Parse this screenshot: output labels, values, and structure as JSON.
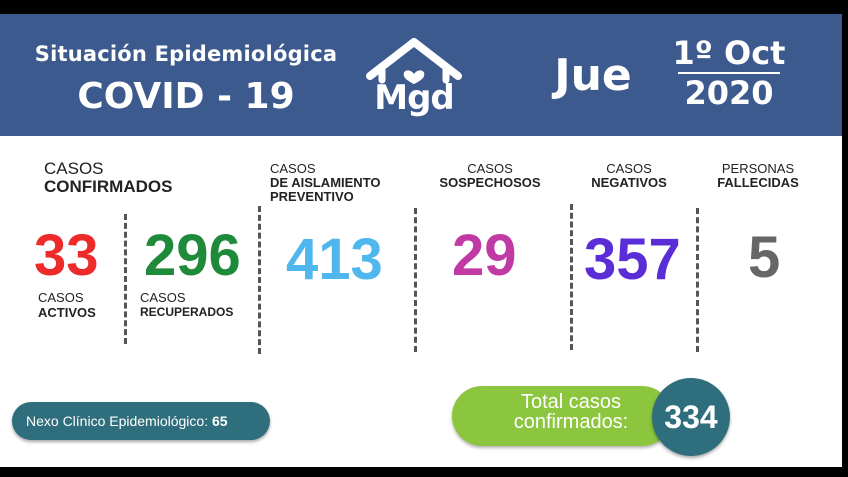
{
  "header": {
    "title_line1": "Situación Epidemiológica",
    "title_line2": "COVID - 19",
    "logo_text": "Mgd",
    "day": "Jue",
    "date_line1": "1º Oct",
    "date_line2": "2020"
  },
  "stats": {
    "confirmados": {
      "label_top": "CASOS",
      "label_bold": "CONFIRMADOS",
      "activos": {
        "value": "33",
        "label_top": "CASOS",
        "label_bold": "ACTIVOS",
        "color": "#ee2b2b"
      },
      "recuperados": {
        "value": "296",
        "label_top": "CASOS",
        "label_bold": "RECUPERADOS",
        "color": "#1e8a3a"
      }
    },
    "aislamiento": {
      "label_top": "CASOS",
      "label_bold1": "DE AISLAMIENTO",
      "label_bold2": "PREVENTIVO",
      "value": "413",
      "color": "#4fb6ee"
    },
    "sospechosos": {
      "label_top": "CASOS",
      "label_bold": "SOSPECHOSOS",
      "value": "29",
      "color": "#c13aa4"
    },
    "negativos": {
      "label_top": "CASOS",
      "label_bold": "NEGATIVOS",
      "value": "357",
      "color": "#5a2dd6"
    },
    "fallecidas": {
      "label_top": "PERSONAS",
      "label_bold": "FALLECIDAS",
      "value": "5",
      "color": "#666666"
    }
  },
  "footer": {
    "nexo_label": "Nexo Clínico Epidemiológico:",
    "nexo_value": "65",
    "total_line1": "Total casos",
    "total_line2": "confirmados:",
    "total_value": "334"
  },
  "colors": {
    "header_bg": "#3d5a8e",
    "pill_green": "#8cc63f",
    "teal": "#2f6e7c"
  }
}
